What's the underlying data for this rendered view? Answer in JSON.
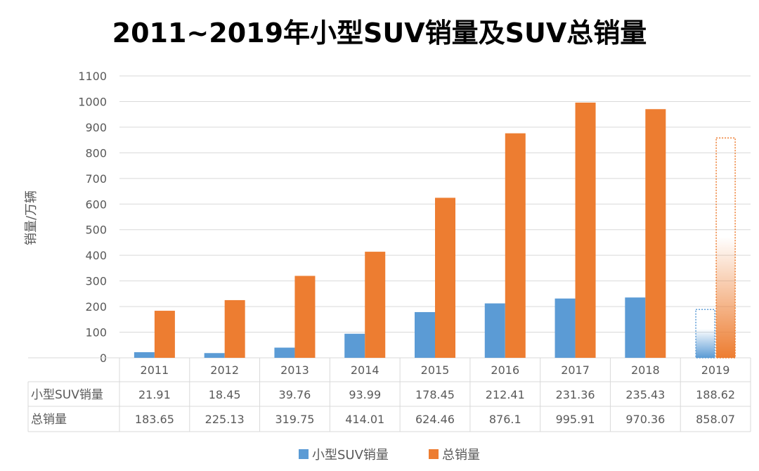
{
  "chart_data": {
    "type": "bar",
    "title": "2011~2019年小型SUV销量及SUV总销量",
    "xlabel": "",
    "ylabel": "销量/万辆",
    "ylim": [
      0,
      1100
    ],
    "yticks": [
      0,
      100,
      200,
      300,
      400,
      500,
      600,
      700,
      800,
      900,
      1000,
      1100
    ],
    "grid": true,
    "legend_position": "bottom",
    "categories": [
      "2011",
      "2012",
      "2013",
      "2014",
      "2015",
      "2016",
      "2017",
      "2018",
      "2019"
    ],
    "series": [
      {
        "name": "小型SUV销量",
        "color": "#5b9bd5",
        "values": [
          21.91,
          18.45,
          39.76,
          93.99,
          178.45,
          212.41,
          231.36,
          235.43,
          188.62
        ]
      },
      {
        "name": "总销量",
        "color": "#ed7d31",
        "values": [
          183.65,
          225.13,
          319.75,
          414.01,
          624.46,
          876.1,
          995.91,
          970.36,
          858.07
        ]
      }
    ],
    "table_labels": [
      "21.91",
      "18.45",
      "39.76",
      "93.99",
      "178.45",
      "212.41",
      "231.36",
      "235.43",
      "188.62",
      "183.65",
      "225.13",
      "319.75",
      "414.01",
      "624.46",
      "876.1",
      "995.91",
      "970.36",
      "858.07"
    ]
  }
}
